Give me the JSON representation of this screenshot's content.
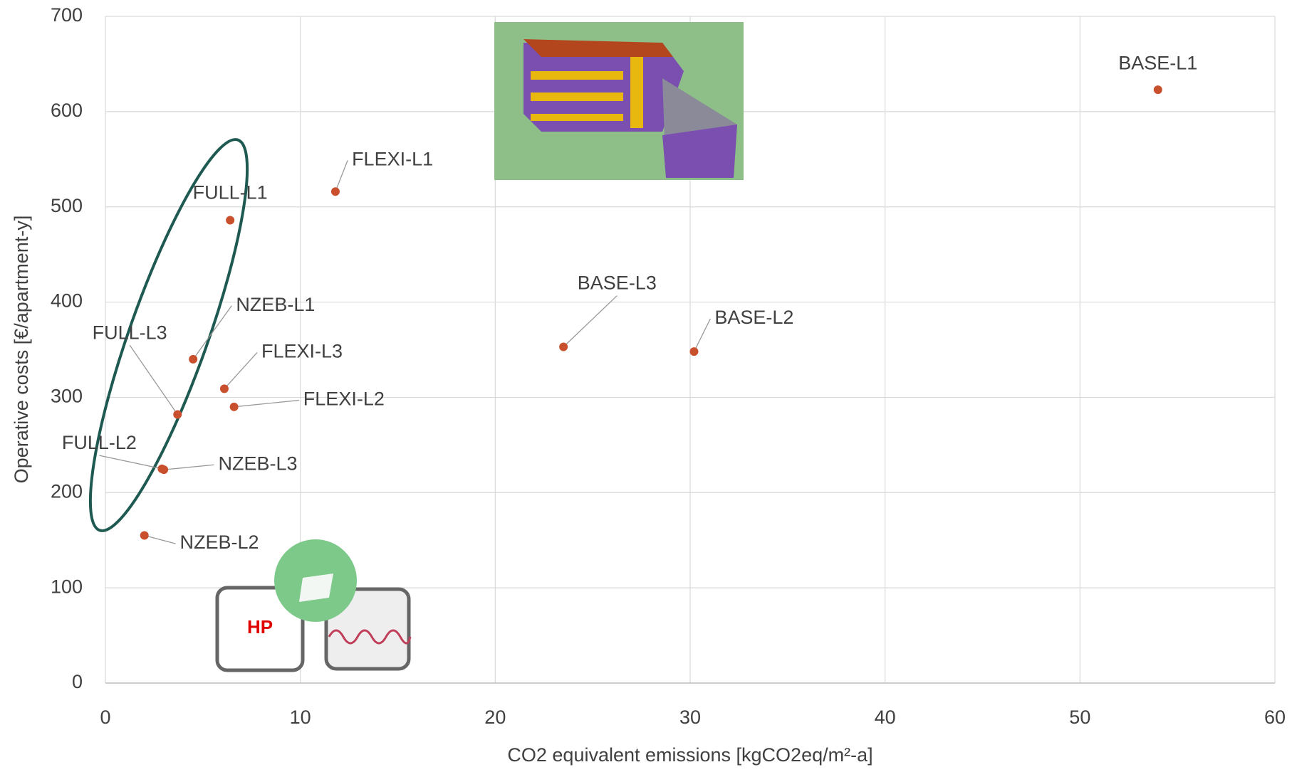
{
  "chart_data": {
    "type": "scatter",
    "x_label": "CO2 equivalent emissions [kgCO2eq/m²-a]",
    "y_label": "Operative costs [€/apartment-y]",
    "series": [
      {
        "color": "#c9502c",
        "labels": [
          "BASE-L1",
          "FLEXI-L1",
          "FULL-L1",
          "BASE-L3",
          "BASE-L2",
          "NZEB-L1",
          "FLEXI-L3",
          "FLEXI-L2",
          "FULL-L3",
          "FULL-L2",
          "NZEB-L3",
          "NZEB-L2"
        ],
        "x": [
          54.0,
          11.8,
          6.4,
          23.5,
          30.2,
          4.5,
          6.1,
          6.6,
          3.7,
          2.9,
          3.0,
          2.0
        ],
        "values": [
          623,
          516,
          486,
          353,
          348,
          340,
          309,
          290,
          282,
          225,
          224,
          155
        ]
      }
    ],
    "xlim": [
      0,
      60
    ],
    "xticks": [
      0,
      10,
      20,
      30,
      40,
      50,
      60
    ],
    "ylim": [
      0,
      700
    ],
    "yticks": [
      0,
      100,
      200,
      300,
      400,
      500,
      600,
      700
    ],
    "grid": true,
    "annotations": [
      "HP"
    ]
  }
}
